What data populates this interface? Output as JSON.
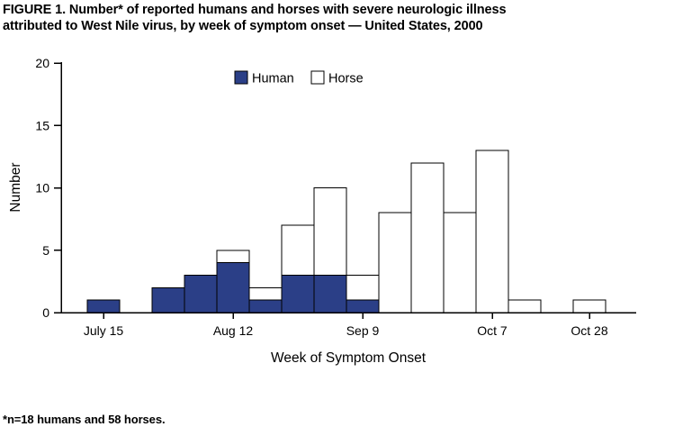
{
  "title": {
    "line1": "FIGURE 1. Number* of reported humans and horses with severe neurologic illness",
    "line2": "attributed to West Nile virus, by week of symptom onset — United States, 2000"
  },
  "footnote": "*n=18 humans and 58 horses.",
  "colors": {
    "human_bar": "#2b3f87",
    "horse_bar": "#ffffff",
    "bar_outline": "#000000",
    "axis": "#000000"
  },
  "chart_data": {
    "type": "bar",
    "stacked": true,
    "title": "Number of reported humans and horses with severe neurologic illness attributed to West Nile virus, by week of symptom onset — United States, 2000",
    "xlabel": "Week of Symptom Onset",
    "ylabel": "Number",
    "ylim": [
      0,
      20
    ],
    "yticks": [
      0,
      5,
      10,
      15,
      20
    ],
    "grid": false,
    "legend_position": "top-center",
    "categories": [
      "July 15",
      "July 22",
      "July 29",
      "Aug 5",
      "Aug 12",
      "Aug 19",
      "Aug 26",
      "Sep 2",
      "Sep 9",
      "Sep 16",
      "Sep 23",
      "Sep 30",
      "Oct 7",
      "Oct 14",
      "Oct 21",
      "Oct 28"
    ],
    "x_tick_labels": [
      {
        "index": 0,
        "label": "July 15"
      },
      {
        "index": 4,
        "label": "Aug 12"
      },
      {
        "index": 8,
        "label": "Sep 9"
      },
      {
        "index": 12,
        "label": "Oct 7"
      },
      {
        "index": 15,
        "label": "Oct 28"
      }
    ],
    "series": [
      {
        "name": "Human",
        "color": "#2b3f87",
        "total": 18,
        "values": [
          1,
          0,
          2,
          3,
          4,
          1,
          3,
          3,
          1,
          0,
          0,
          0,
          0,
          0,
          0,
          0
        ]
      },
      {
        "name": "Horse",
        "color": "#ffffff",
        "total": 58,
        "values": [
          0,
          0,
          0,
          0,
          1,
          1,
          4,
          7,
          2,
          8,
          12,
          8,
          13,
          1,
          0,
          1
        ]
      }
    ]
  }
}
